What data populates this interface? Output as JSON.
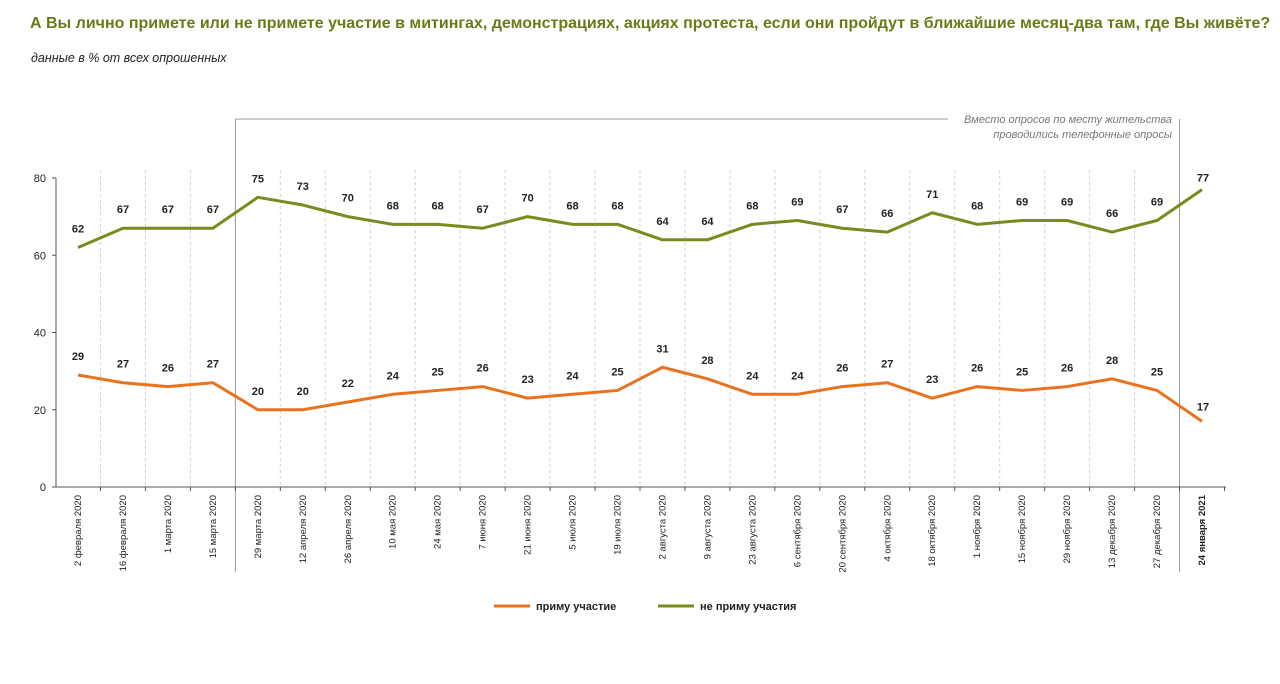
{
  "header": {
    "title": "А Вы лично примете или не примете участие в митингах, демонстрациях, акциях протеста, если они пройдут в ближайшие месяц-два там, где Вы живёте?",
    "subtitle": "данные в % от всех опрошенных"
  },
  "note": {
    "line1": "Вместо опросов по месту жительства",
    "line2": "проводились телефонные опросы"
  },
  "colors": {
    "take_part": "#e8731f",
    "not_take_part": "#7a8a1e",
    "title": "#6b7a16"
  },
  "chart_data": {
    "type": "line",
    "title": "А Вы лично примете или не примете участие в митингах, демонстрациях, акциях протеста, если они пройдут в ближайшие месяц-два там, где Вы живёте?",
    "subtitle": "данные в % от всех опрошенных",
    "categories": [
      "2 февраля 2020",
      "16 февраля 2020",
      "1 марта 2020",
      "15 марта 2020",
      "29 марта 2020",
      "12 апреля 2020",
      "26 апреля 2020",
      "10 мая 2020",
      "24 мая 2020",
      "7 июня 2020",
      "21 июня 2020",
      "5 июля 2020",
      "19 июля 2020",
      "2 августа 2020",
      "9 августа 2020",
      "23 августа 2020",
      "6 сентября 2020",
      "20 сентября 2020",
      "4 октября 2020",
      "18 октября 2020",
      "1 ноября 2020",
      "15 ноября 2020",
      "29 ноября 2020",
      "13 декабря 2020",
      "27 декабря 2020",
      "24 января 2021"
    ],
    "series": [
      {
        "name": "приму участие",
        "color": "#e8731f",
        "values": [
          29,
          27,
          26,
          27,
          20,
          20,
          22,
          24,
          25,
          26,
          23,
          24,
          25,
          31,
          28,
          24,
          24,
          26,
          27,
          23,
          26,
          25,
          26,
          28,
          25,
          17
        ]
      },
      {
        "name": "не приму участия",
        "color": "#7a8a1e",
        "values": [
          62,
          67,
          67,
          67,
          75,
          73,
          70,
          68,
          68,
          67,
          70,
          68,
          68,
          64,
          64,
          68,
          69,
          67,
          66,
          71,
          68,
          69,
          69,
          66,
          69,
          77
        ]
      }
    ],
    "yticks": [
      0,
      20,
      40,
      60,
      80
    ],
    "ylim": [
      0,
      80
    ],
    "grid": "vertical dashed",
    "legend_position": "bottom-center"
  }
}
